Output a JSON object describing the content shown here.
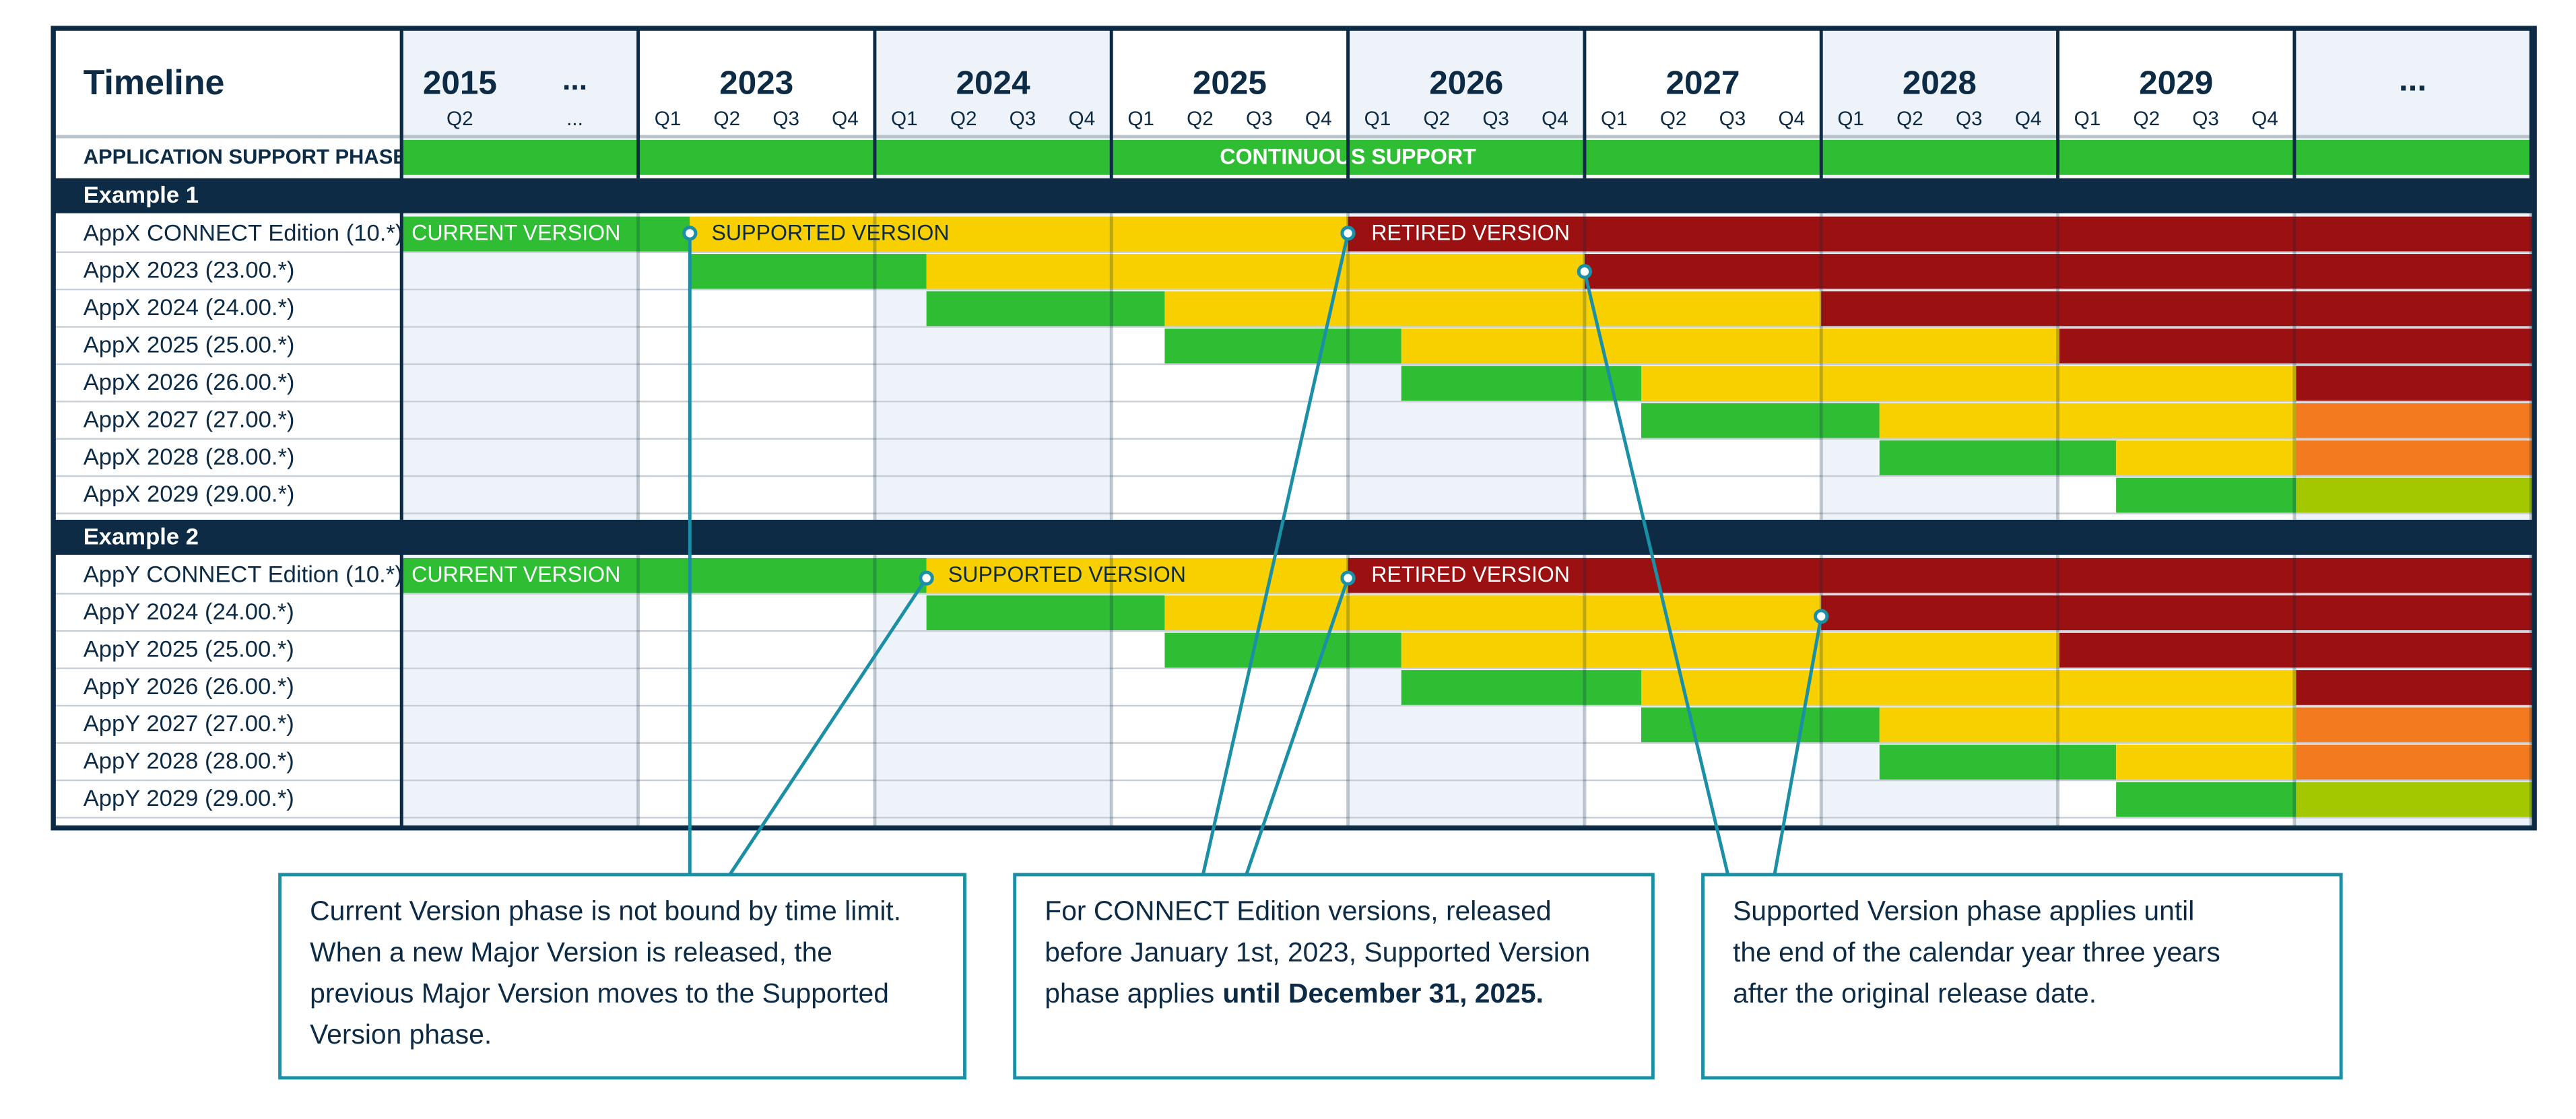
{
  "header": {
    "title": "Timeline",
    "columns": [
      {
        "labels": [
          "2015",
          "..."
        ],
        "quarters": [
          "Q2",
          "..."
        ]
      },
      {
        "labels": [
          "2023"
        ],
        "quarters": [
          "Q1",
          "Q2",
          "Q3",
          "Q4"
        ]
      },
      {
        "labels": [
          "2024"
        ],
        "quarters": [
          "Q1",
          "Q2",
          "Q3",
          "Q4"
        ]
      },
      {
        "labels": [
          "2025"
        ],
        "quarters": [
          "Q1",
          "Q2",
          "Q3",
          "Q4"
        ]
      },
      {
        "labels": [
          "2026"
        ],
        "quarters": [
          "Q1",
          "Q2",
          "Q3",
          "Q4"
        ]
      },
      {
        "labels": [
          "2027"
        ],
        "quarters": [
          "Q1",
          "Q2",
          "Q3",
          "Q4"
        ]
      },
      {
        "labels": [
          "2028"
        ],
        "quarters": [
          "Q1",
          "Q2",
          "Q3",
          "Q4"
        ]
      },
      {
        "labels": [
          "2029"
        ],
        "quarters": [
          "Q1",
          "Q2",
          "Q3",
          "Q4"
        ]
      },
      {
        "labels": [
          "..."
        ],
        "quarters": []
      }
    ]
  },
  "phase_row": {
    "label": "APPLICATION SUPPORT PHASE",
    "value": "CONTINUOUS SUPPORT"
  },
  "examples": [
    {
      "title": "Example 1",
      "rows": [
        "AppX CONNECT Edition (10.*)",
        "AppX 2023 (23.00.*)",
        "AppX 2024 (24.00.*)",
        "AppX 2025 (25.00.*)",
        "AppX 2026 (26.00.*)",
        "AppX 2027 (27.00.*)",
        "AppX 2028 (28.00.*)",
        "AppX 2029 (29.00.*)"
      ],
      "phase_labels": [
        "CURRENT VERSION",
        "SUPPORTED VERSION",
        "RETIRED VERSION"
      ]
    },
    {
      "title": "Example 2",
      "rows": [
        "AppY CONNECT Edition (10.*)",
        "AppY 2024 (24.00.*)",
        "AppY 2025 (25.00.*)",
        "AppY 2026 (26.00.*)",
        "AppY 2027 (27.00.*)",
        "AppY 2028 (28.00.*)",
        "AppY 2029 (29.00.*)"
      ],
      "phase_labels": [
        "CURRENT VERSION",
        "SUPPORTED VERSION",
        "RETIRED VERSION"
      ]
    }
  ],
  "callouts": [
    {
      "lines": [
        "Current Version phase is not bound by time limit.",
        "When a new Major Version is released, the",
        "previous Major Version moves to the Supported",
        "Version phase."
      ]
    },
    {
      "lines": [
        "For CONNECT Edition versions, released",
        "before January 1st, 2023, Supported Version",
        "phase applies"
      ],
      "emphasis": "until December 31, 2025."
    },
    {
      "lines": [
        "Supported Version phase applies until",
        "the end of the calendar year three years",
        "after the original release date."
      ]
    }
  ]
}
